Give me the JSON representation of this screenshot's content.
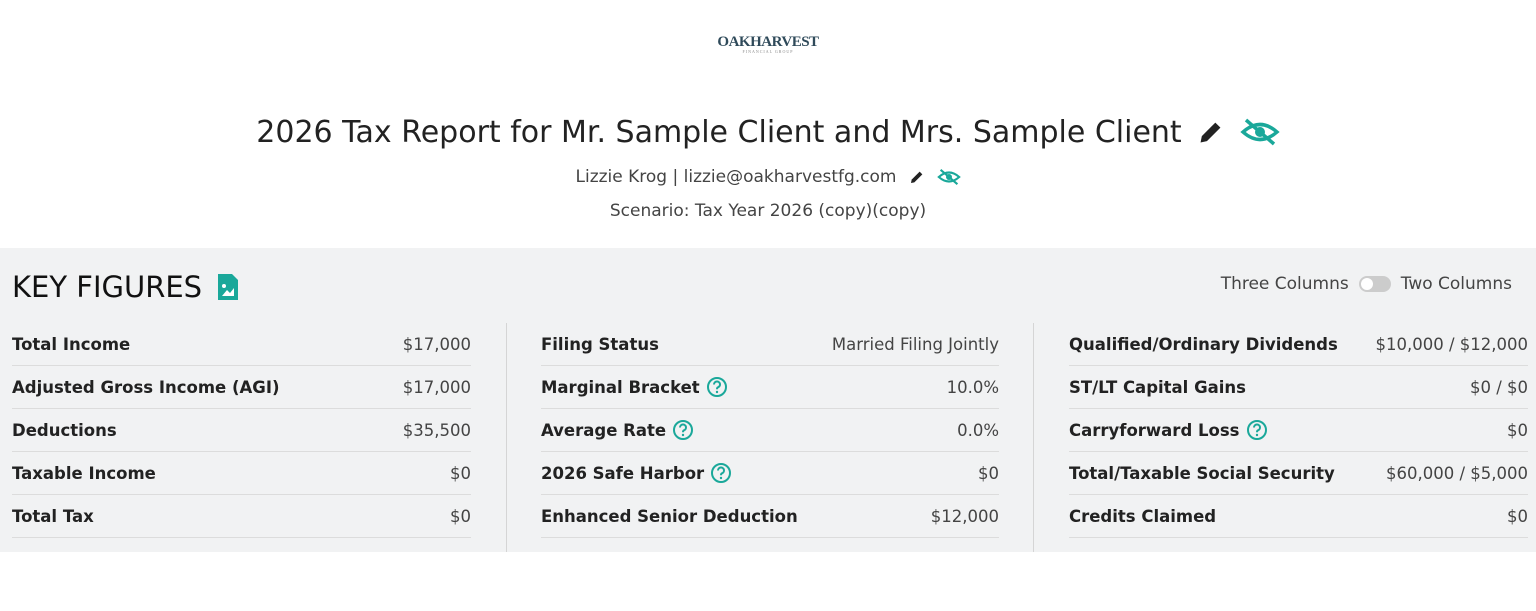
{
  "logo": {
    "name": "OakHarvest",
    "tagline": "FINANCIAL GROUP"
  },
  "header": {
    "title": "2026 Tax Report for Mr. Sample Client and Mrs. Sample Client",
    "advisor_name": "Lizzie Krog",
    "advisor_email": "lizzie@oakharvestfg.com",
    "scenario": "Scenario: Tax Year 2026 (copy)(copy)"
  },
  "key_figures": {
    "title": "KEY FIGURES",
    "toggle_left": "Three Columns",
    "toggle_right": "Two Columns",
    "columns": [
      [
        {
          "label": "Total Income",
          "value": "$17,000"
        },
        {
          "label": "Adjusted Gross Income (AGI)",
          "value": "$17,000"
        },
        {
          "label": "Deductions",
          "value": "$35,500"
        },
        {
          "label": "Taxable Income",
          "value": "$0"
        },
        {
          "label": "Total Tax",
          "value": "$0"
        }
      ],
      [
        {
          "label": "Filing Status",
          "value": "Married Filing Jointly"
        },
        {
          "label": "Marginal Bracket",
          "value": "10.0%",
          "help": true
        },
        {
          "label": "Average Rate",
          "value": "0.0%",
          "help": true
        },
        {
          "label": "2026 Safe Harbor",
          "value": "$0",
          "help": true
        },
        {
          "label": "Enhanced Senior Deduction",
          "value": "$12,000"
        }
      ],
      [
        {
          "label": "Qualified/Ordinary Dividends",
          "value": "$10,000 / $12,000"
        },
        {
          "label": "ST/LT Capital Gains",
          "value": "$0 / $0"
        },
        {
          "label": "Carryforward Loss",
          "value": "$0",
          "help": true
        },
        {
          "label": "Total/Taxable Social Security",
          "value": "$60,000 / $5,000"
        },
        {
          "label": "Credits Claimed",
          "value": "$0"
        }
      ]
    ]
  }
}
